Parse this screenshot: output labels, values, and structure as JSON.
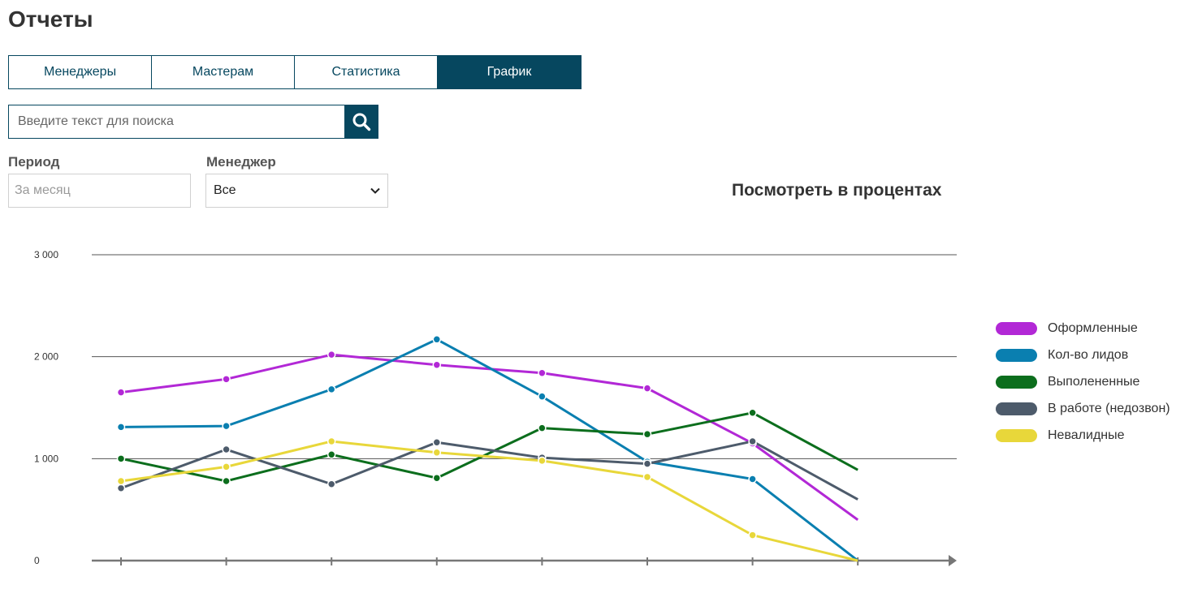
{
  "page": {
    "title": "Отчеты"
  },
  "tabs": [
    {
      "label": "Менеджеры",
      "active": false
    },
    {
      "label": "Мастерам",
      "active": false
    },
    {
      "label": "Статистика",
      "active": false
    },
    {
      "label": "График",
      "active": true
    }
  ],
  "search": {
    "placeholder": "Введите текст для поиска",
    "value": "",
    "icon": "search-icon"
  },
  "filters": {
    "period": {
      "label": "Период",
      "placeholder": "За месяц",
      "value": ""
    },
    "manager": {
      "label": "Менеджер",
      "selected": "Все"
    }
  },
  "percent_toggle": {
    "label": "Посмотреть в процентах"
  },
  "colors": {
    "primary": "#06475f",
    "grid": "#555555",
    "axis": "#777777"
  },
  "chart_data": {
    "type": "line",
    "title": "",
    "xlabel": "",
    "ylabel": "",
    "ylim": [
      0,
      3000
    ],
    "y_ticks": [
      {
        "value": 0,
        "label": "0"
      },
      {
        "value": 1000,
        "label": "1 000"
      },
      {
        "value": 2000,
        "label": "2 000"
      },
      {
        "value": 3000,
        "label": "3 000"
      }
    ],
    "grid": true,
    "legend_position": "right",
    "categories": [
      "",
      "",
      "",
      "",
      "",
      "",
      "",
      ""
    ],
    "series": [
      {
        "name": "Оформленные",
        "color": "#b228d6",
        "values": [
          1650,
          1780,
          2020,
          1920,
          1840,
          1690,
          1150,
          400
        ]
      },
      {
        "name": "Кол-во лидов",
        "color": "#0a7fb0",
        "values": [
          1310,
          1320,
          1680,
          2170,
          1610,
          970,
          800,
          0
        ]
      },
      {
        "name": "Выполененные",
        "color": "#0c6e1d",
        "values": [
          1000,
          780,
          1040,
          810,
          1300,
          1240,
          1450,
          890
        ]
      },
      {
        "name": "В работе (недозвон)",
        "color": "#4d5b6b",
        "values": [
          710,
          1090,
          750,
          1160,
          1010,
          950,
          1170,
          600
        ]
      },
      {
        "name": "Невалидные",
        "color": "#e8d73a",
        "values": [
          780,
          920,
          1170,
          1060,
          980,
          820,
          250,
          0
        ]
      }
    ]
  }
}
